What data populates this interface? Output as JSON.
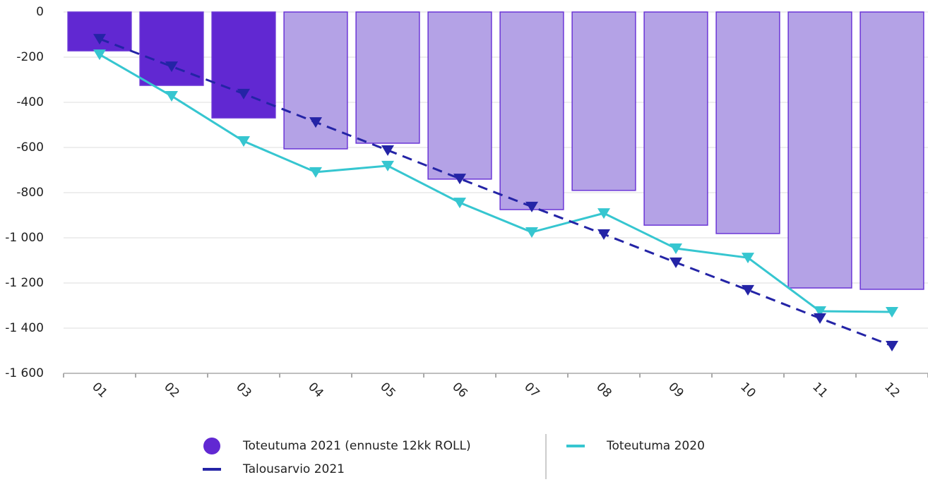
{
  "chart_data": {
    "type": "bar",
    "categories": [
      "01",
      "02",
      "03",
      "04",
      "05",
      "06",
      "07",
      "08",
      "09",
      "10",
      "11",
      "12"
    ],
    "ylim": [
      -1600,
      0
    ],
    "yticks": [
      0,
      -200,
      -400,
      -600,
      -800,
      {
        "value": -1000,
        "label": "-1 000"
      },
      {
        "value": -1200,
        "label": "-1 200"
      },
      {
        "value": -1400,
        "label": "-1 400"
      },
      {
        "value": -1600,
        "label": "-1 600"
      }
    ],
    "grid": true,
    "series": [
      {
        "name": "Toteutuma 2021 (ennuste 12kk ROLL)",
        "type": "bar",
        "color": "#6128d2",
        "edgecolor": "#6a35d6",
        "colors": [
          "#6128d2",
          "#6128d2",
          "#6128d2",
          "#b4a2e6",
          "#b4a2e6",
          "#b4a2e6",
          "#b4a2e6",
          "#b4a2e6",
          "#b4a2e6",
          "#b4a2e6",
          "#b4a2e6",
          "#b4a2e6"
        ],
        "values": [
          -172,
          -325,
          -469,
          -606,
          -581,
          -740,
          -875,
          -790,
          -944,
          -981,
          -1222,
          -1228
        ]
      },
      {
        "name": "Toteutuma 2020",
        "type": "line",
        "color": "#36c6d0",
        "marker": "triangle-down",
        "values": [
          -188,
          -372,
          -572,
          -709,
          -681,
          -844,
          -975,
          -891,
          -1047,
          -1088,
          -1325,
          -1328
        ]
      },
      {
        "name": "Talousarvio 2021",
        "type": "line",
        "color": "#2424a6",
        "dashed": true,
        "marker": "triangle-down",
        "values": [
          -119,
          -241,
          -362,
          -488,
          -612,
          -738,
          -862,
          -984,
          -1109,
          -1231,
          -1356,
          -1478
        ]
      }
    ]
  }
}
